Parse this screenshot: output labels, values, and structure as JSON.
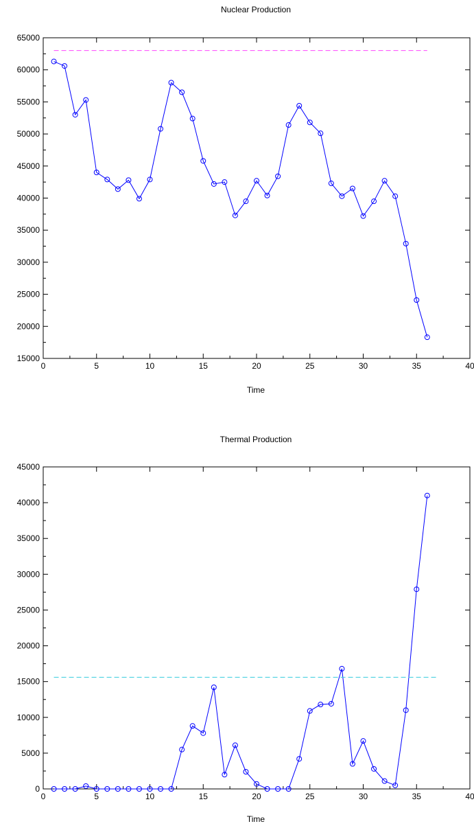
{
  "chart_data": [
    {
      "type": "line",
      "title": "Nuclear Production",
      "xlabel": "Time",
      "ylabel": "",
      "xlim": [
        0,
        40
      ],
      "ylim": [
        15000,
        65000
      ],
      "xticks": [
        0,
        5,
        10,
        15,
        20,
        25,
        30,
        35,
        40
      ],
      "yticks": [
        15000,
        20000,
        25000,
        30000,
        35000,
        40000,
        45000,
        50000,
        55000,
        60000,
        65000
      ],
      "grid": false,
      "series": [
        {
          "color": "#0000ff",
          "marker": "circle",
          "x": [
            1,
            2,
            3,
            4,
            5,
            6,
            7,
            8,
            9,
            10,
            11,
            12,
            13,
            14,
            15,
            16,
            17,
            18,
            19,
            20,
            21,
            22,
            23,
            24,
            25,
            26,
            27,
            28,
            29,
            30,
            31,
            32,
            33,
            34,
            35,
            36
          ],
          "values": [
            61300,
            60600,
            53000,
            55300,
            44000,
            42900,
            41400,
            42800,
            39900,
            42900,
            50800,
            58000,
            56500,
            52400,
            45800,
            42200,
            42500,
            37300,
            39500,
            42700,
            40400,
            43400,
            51400,
            54400,
            51800,
            50100,
            42300,
            40300,
            41500,
            37200,
            39500,
            42700,
            40300,
            32900,
            24100,
            18300
          ]
        },
        {
          "color": "#ff44ff",
          "style": "dashed",
          "x": [
            1,
            36
          ],
          "values": [
            63000,
            63000
          ]
        }
      ]
    },
    {
      "type": "line",
      "title": "Thermal Production",
      "xlabel": "Time",
      "ylabel": "",
      "xlim": [
        0,
        40
      ],
      "ylim": [
        0,
        45000
      ],
      "xticks": [
        0,
        5,
        10,
        15,
        20,
        25,
        30,
        35,
        40
      ],
      "yticks": [
        0,
        5000,
        10000,
        15000,
        20000,
        25000,
        30000,
        35000,
        40000,
        45000
      ],
      "grid": false,
      "series": [
        {
          "color": "#0000ff",
          "marker": "circle",
          "x": [
            1,
            2,
            3,
            4,
            5,
            6,
            7,
            8,
            9,
            10,
            11,
            12,
            13,
            14,
            15,
            16,
            17,
            18,
            19,
            20,
            21,
            22,
            23,
            24,
            25,
            26,
            27,
            28,
            29,
            30,
            31,
            32,
            33,
            34,
            35,
            36
          ],
          "values": [
            0,
            0,
            0,
            400,
            0,
            0,
            0,
            0,
            0,
            0,
            0,
            0,
            5500,
            8800,
            7800,
            14200,
            2000,
            6100,
            2400,
            700,
            0,
            0,
            0,
            4200,
            10900,
            11800,
            11900,
            16800,
            3500,
            6700,
            2800,
            1100,
            500,
            11000,
            27900,
            41000
          ]
        },
        {
          "color": "#33ccdd",
          "style": "dashed",
          "x": [
            1,
            37
          ],
          "values": [
            15600,
            15600
          ]
        }
      ]
    }
  ]
}
